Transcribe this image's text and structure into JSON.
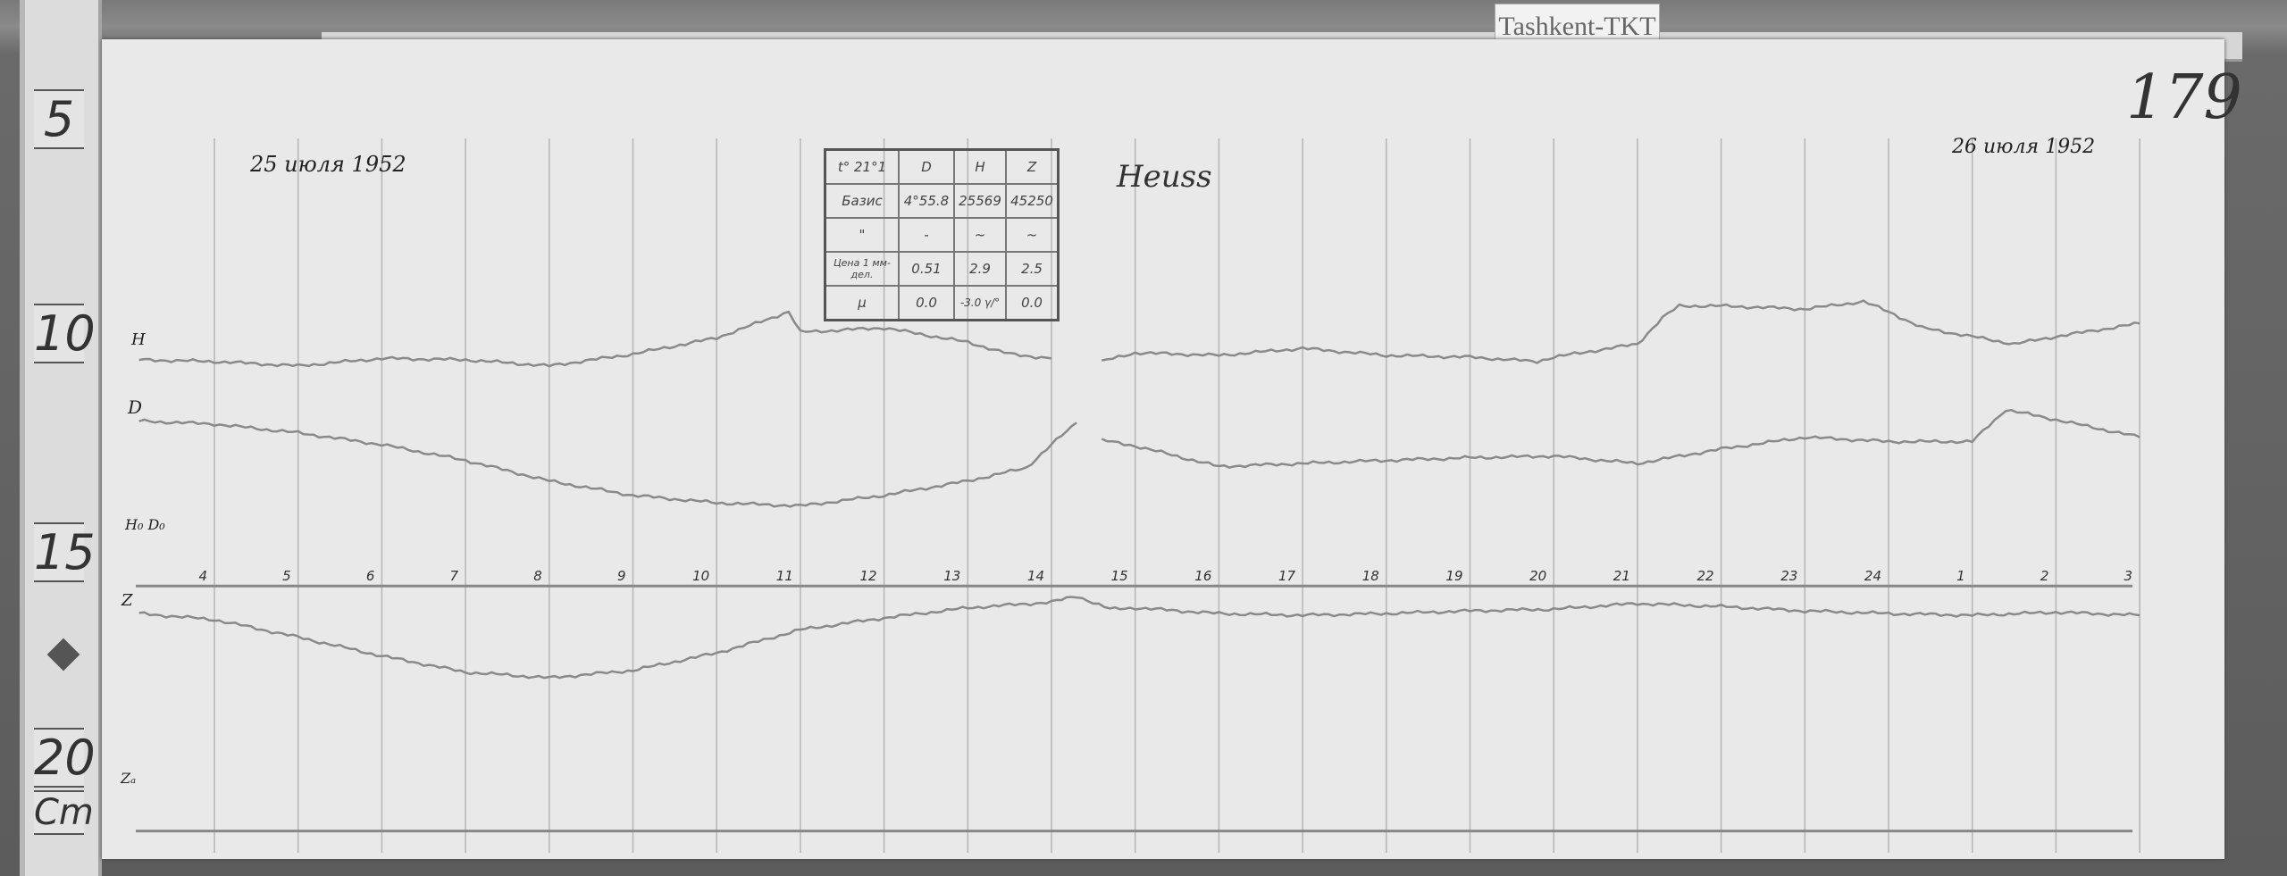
{
  "station_label": "Tashkent-TKT",
  "sheet_number": "179",
  "date_start": "25 июля 1952",
  "date_end": "26 июля 1952",
  "signature": "Heuss",
  "ruler": {
    "unit": "Cm",
    "labels": [
      "5",
      "10",
      "15",
      "20"
    ]
  },
  "trace_labels": {
    "h": "H",
    "d": "D",
    "z": "Z",
    "baseline_hd": "H₀ D₀",
    "baseline_z": "Zₐ"
  },
  "constants_table": {
    "header": [
      "t° 21°1",
      "D",
      "H",
      "Z"
    ],
    "rows": [
      [
        "Базис",
        "4°55.8",
        "25569",
        "45250"
      ],
      [
        "\"",
        "-",
        "~",
        "~"
      ],
      [
        "Цена 1 мм-дел.",
        "0.51",
        "2.9",
        "2.5"
      ],
      [
        "μ",
        "0.0",
        "-3.0 γ/°",
        "0.0"
      ]
    ]
  },
  "colors": {
    "paper": "#e9e9e9",
    "trace": "#8a8a8a",
    "grid": "#b5b5b5"
  },
  "chart_data": {
    "type": "line",
    "title": "",
    "xlabel": "",
    "ylabel": "",
    "x_tick_labels": [
      "4",
      "5",
      "6",
      "7",
      "8",
      "9",
      "10",
      "11",
      "12",
      "13",
      "14",
      "15",
      "16",
      "17",
      "18",
      "19",
      "20",
      "21",
      "22",
      "23",
      "24",
      "1",
      "2",
      "3"
    ],
    "x_note": "hour of day; after 24 the labels restart at 1, 2, 3 (26 July)",
    "y_unit": "cm on sheet ruler",
    "ylim": [
      5,
      20
    ],
    "grid": true,
    "series": [
      {
        "name": "H",
        "x": [
          3.1,
          4,
          5,
          6,
          7,
          8,
          9,
          10,
          11,
          10.86,
          12,
          13,
          13.5,
          14,
          null,
          14.6,
          15,
          16,
          17,
          18,
          19,
          19.8,
          20,
          21,
          21.3,
          21.5,
          22,
          23,
          23.7,
          24,
          24.4,
          25,
          25.5,
          26,
          27
        ],
        "y": [
          10.63,
          10.67,
          10.77,
          10.6,
          10.63,
          10.77,
          10.5,
          10.13,
          10.0,
          9.53,
          9.9,
          10.23,
          10.5,
          10.6,
          null,
          10.67,
          10.47,
          10.53,
          10.37,
          10.53,
          10.57,
          10.67,
          10.57,
          10.27,
          9.67,
          9.4,
          9.4,
          9.47,
          9.3,
          9.53,
          9.9,
          10.1,
          10.27,
          10.1,
          9.8
        ]
      },
      {
        "name": "D",
        "x": [
          3.1,
          4,
          5,
          6,
          7,
          8,
          9,
          10,
          11,
          12,
          13,
          13.7,
          14,
          14.3,
          null,
          14.6,
          15,
          16,
          17,
          18,
          19,
          20,
          21,
          22,
          23,
          24,
          25,
          25.4,
          26,
          27
        ],
        "y": [
          12.03,
          12.1,
          12.3,
          12.57,
          12.93,
          13.4,
          13.73,
          13.9,
          13.97,
          13.73,
          13.4,
          13.1,
          12.57,
          12.07,
          null,
          12.47,
          12.6,
          13.07,
          13.0,
          12.93,
          12.87,
          12.83,
          13.0,
          12.67,
          12.4,
          12.5,
          12.5,
          11.77,
          12.0,
          12.4
        ]
      },
      {
        "name": "Z",
        "x": [
          3.1,
          4,
          5,
          6,
          7,
          8,
          9,
          10,
          11,
          12,
          13,
          14,
          14.3,
          14.7,
          15,
          16,
          17,
          18,
          19,
          20,
          21,
          22,
          23,
          24,
          25,
          26,
          27
        ],
        "y": [
          16.43,
          16.57,
          16.97,
          17.4,
          17.77,
          17.9,
          17.73,
          17.33,
          16.8,
          16.53,
          16.3,
          16.17,
          16.03,
          16.33,
          16.3,
          16.43,
          16.47,
          16.43,
          16.37,
          16.33,
          16.2,
          16.27,
          16.37,
          16.43,
          16.47,
          16.4,
          16.47
        ]
      }
    ],
    "baselines": [
      {
        "name": "H₀ D₀",
        "y": 15.8
      },
      {
        "name": "Zₐ",
        "y": 21.4
      }
    ]
  }
}
